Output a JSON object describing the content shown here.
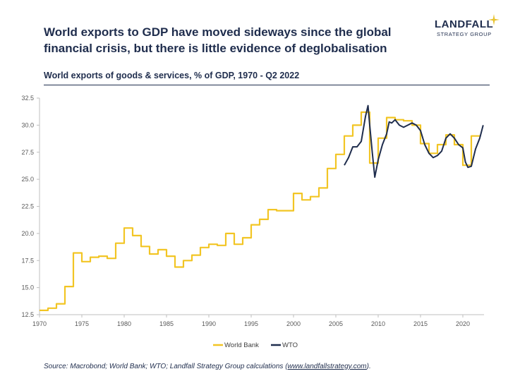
{
  "header": {
    "headline": "World exports to GDP have moved sideways since the global financial crisis, but there is little evidence of deglobalisation",
    "logo_name": "LANDFALL",
    "logo_tagline": "STRATEGY GROUP",
    "logo_color": "#1f2d4d",
    "logo_star_color": "#e8c330"
  },
  "source": {
    "prefix": "Source: Macrobond; World Bank; WTO; Landfall Strategy Group calculations (",
    "link": "www.landfallstrategy.com",
    "suffix": ")."
  },
  "chart_data": {
    "type": "line",
    "title": "World exports of goods & services, % of GDP, 1970 - Q2 2022",
    "xlabel": "",
    "ylabel": "",
    "xlim": [
      1970,
      2022.5
    ],
    "ylim": [
      12.5,
      32.5
    ],
    "x_ticks": [
      "1970",
      "1975",
      "1980",
      "1985",
      "1990",
      "1995",
      "2000",
      "2005",
      "2010",
      "2015",
      "2020"
    ],
    "y_ticks": [
      "12.5",
      "15.0",
      "17.5",
      "20.0",
      "22.5",
      "25.0",
      "27.5",
      "30.0",
      "32.5"
    ],
    "grid": false,
    "legend_position": "bottom",
    "series": [
      {
        "name": "World Bank",
        "color": "#f2c524",
        "step": true,
        "x": [
          1970,
          1971,
          1972,
          1973,
          1974,
          1975,
          1976,
          1977,
          1978,
          1979,
          1980,
          1981,
          1982,
          1983,
          1984,
          1985,
          1986,
          1987,
          1988,
          1989,
          1990,
          1991,
          1992,
          1993,
          1994,
          1995,
          1996,
          1997,
          1998,
          1999,
          2000,
          2001,
          2002,
          2003,
          2004,
          2005,
          2006,
          2007,
          2008,
          2009,
          2010,
          2011,
          2012,
          2013,
          2014,
          2015,
          2016,
          2017,
          2018,
          2019,
          2020,
          2021
        ],
        "values": [
          12.9,
          13.1,
          13.5,
          15.1,
          18.2,
          17.4,
          17.8,
          17.9,
          17.7,
          19.1,
          20.5,
          19.8,
          18.8,
          18.1,
          18.5,
          17.9,
          16.9,
          17.5,
          18.0,
          18.7,
          19.0,
          18.9,
          20.0,
          19.0,
          19.6,
          20.8,
          21.3,
          22.2,
          22.1,
          22.1,
          23.7,
          23.1,
          23.4,
          24.2,
          26.0,
          27.3,
          29.0,
          30.0,
          31.2,
          26.5,
          28.8,
          30.7,
          30.5,
          30.4,
          30.0,
          28.3,
          27.4,
          28.2,
          29.1,
          28.2,
          26.3,
          29.0
        ]
      },
      {
        "name": "WTO",
        "color": "#1f2d4d",
        "step": false,
        "x": [
          2006.0,
          2006.5,
          2007.0,
          2007.5,
          2008.0,
          2008.5,
          2008.8,
          2009.0,
          2009.3,
          2009.6,
          2010.0,
          2010.5,
          2011.0,
          2011.3,
          2011.6,
          2012.0,
          2012.5,
          2013.0,
          2013.5,
          2014.0,
          2014.5,
          2015.0,
          2015.5,
          2016.0,
          2016.5,
          2017.0,
          2017.5,
          2018.0,
          2018.5,
          2019.0,
          2019.5,
          2020.0,
          2020.3,
          2020.6,
          2021.0,
          2021.5,
          2022.0,
          2022.4
        ],
        "values": [
          26.3,
          27.0,
          28.0,
          28.0,
          28.5,
          30.8,
          31.8,
          30.0,
          27.5,
          25.2,
          26.8,
          28.2,
          29.2,
          30.3,
          30.2,
          30.5,
          30.0,
          29.8,
          30.0,
          30.2,
          30.0,
          29.5,
          28.2,
          27.4,
          27.0,
          27.2,
          27.6,
          28.8,
          29.2,
          28.8,
          28.2,
          27.9,
          26.6,
          26.1,
          26.2,
          27.8,
          28.8,
          30.0
        ]
      }
    ]
  }
}
